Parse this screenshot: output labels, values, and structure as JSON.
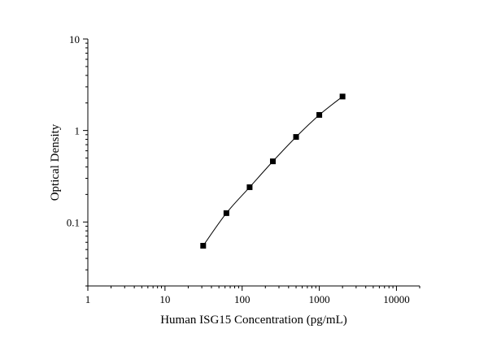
{
  "chart_data": {
    "type": "scatter",
    "title": "",
    "xlabel": "Human ISG15 Concentration (pg/mL)",
    "ylabel": "Optical Density",
    "x_scale": "log",
    "y_scale": "log",
    "xlim": [
      1,
      20000
    ],
    "ylim": [
      0.02,
      10
    ],
    "x_ticks": [
      {
        "value": 1,
        "label": "1"
      },
      {
        "value": 10,
        "label": "10"
      },
      {
        "value": 100,
        "label": "100"
      },
      {
        "value": 1000,
        "label": "1000"
      },
      {
        "value": 10000,
        "label": "10000"
      }
    ],
    "y_ticks": [
      {
        "value": 0.1,
        "label": "0.1"
      },
      {
        "value": 1,
        "label": "1"
      },
      {
        "value": 10,
        "label": "10"
      }
    ],
    "grid": false,
    "legend": "none",
    "marker": "square",
    "color": "#000000",
    "fit_line": true,
    "series": [
      {
        "x": [
          31.25,
          62.5,
          125,
          250,
          500,
          1000,
          2000
        ],
        "y": [
          0.055,
          0.125,
          0.24,
          0.46,
          0.85,
          1.48,
          2.35
        ]
      }
    ]
  }
}
